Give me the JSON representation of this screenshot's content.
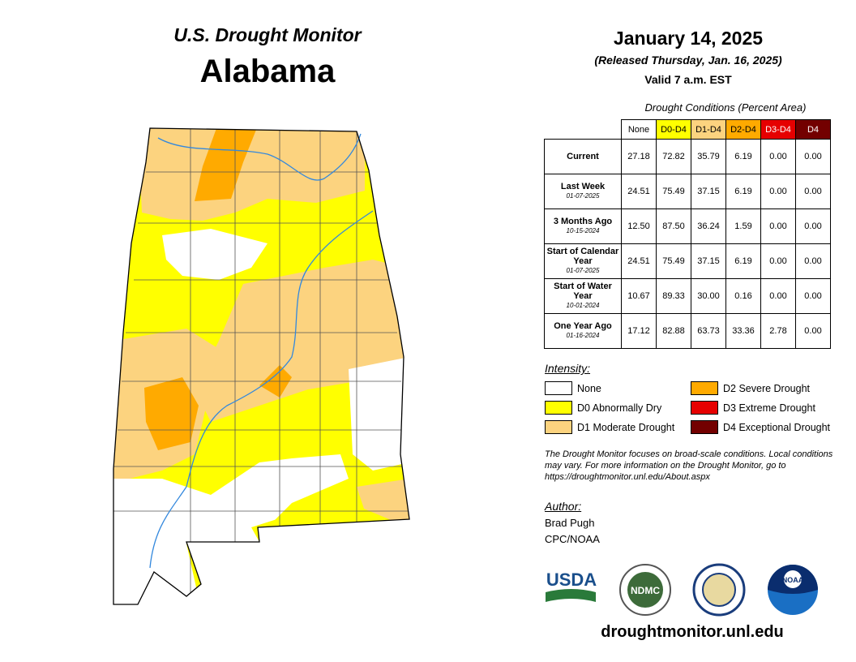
{
  "header": {
    "title": "U.S. Drought Monitor",
    "state": "Alabama",
    "date": "January 14, 2025",
    "released": "(Released Thursday, Jan. 16, 2025)",
    "valid": "Valid 7 a.m. EST"
  },
  "table": {
    "caption": "Drought Conditions (Percent Area)",
    "columns": [
      {
        "label": "None",
        "color": "#ffffff",
        "text_color": "#000000"
      },
      {
        "label": "D0-D4",
        "color": "#ffff00",
        "text_color": "#000000"
      },
      {
        "label": "D1-D4",
        "color": "#fcd37f",
        "text_color": "#000000"
      },
      {
        "label": "D2-D4",
        "color": "#ffaa00",
        "text_color": "#000000"
      },
      {
        "label": "D3-D4",
        "color": "#e60000",
        "text_color": "#ffffff"
      },
      {
        "label": "D4",
        "color": "#730000",
        "text_color": "#ffffff"
      }
    ],
    "rows": [
      {
        "label": "Current",
        "values": [
          "27.18",
          "72.82",
          "35.79",
          "6.19",
          "0.00",
          "0.00"
        ]
      },
      {
        "label": "Last Week",
        "date": "01-07-2025",
        "values": [
          "24.51",
          "75.49",
          "37.15",
          "6.19",
          "0.00",
          "0.00"
        ]
      },
      {
        "label": "3 Months Ago",
        "date": "10-15-2024",
        "values": [
          "12.50",
          "87.50",
          "36.24",
          "1.59",
          "0.00",
          "0.00"
        ]
      },
      {
        "label": "Start of Calendar Year",
        "date": "01-07-2025",
        "values": [
          "24.51",
          "75.49",
          "37.15",
          "6.19",
          "0.00",
          "0.00"
        ]
      },
      {
        "label": "Start of Water Year",
        "date": "10-01-2024",
        "values": [
          "10.67",
          "89.33",
          "30.00",
          "0.16",
          "0.00",
          "0.00"
        ]
      },
      {
        "label": "One Year Ago",
        "date": "01-16-2024",
        "values": [
          "17.12",
          "82.88",
          "63.73",
          "33.36",
          "2.78",
          "0.00"
        ]
      }
    ]
  },
  "legend": {
    "title": "Intensity:",
    "items": [
      {
        "label": "None",
        "color": "#ffffff"
      },
      {
        "label": "D0 Abnormally Dry",
        "color": "#ffff00"
      },
      {
        "label": "D1 Moderate Drought",
        "color": "#fcd37f"
      },
      {
        "label": "D2 Severe Drought",
        "color": "#ffaa00"
      },
      {
        "label": "D3 Extreme Drought",
        "color": "#e60000"
      },
      {
        "label": "D4 Exceptional Drought",
        "color": "#730000"
      }
    ]
  },
  "note": "The Drought Monitor focuses on broad-scale conditions. Local conditions may vary. For more information on the Drought Monitor, go to https://droughtmonitor.unl.edu/About.aspx",
  "author": {
    "title": "Author:",
    "name": "Brad Pugh",
    "org": "CPC/NOAA"
  },
  "logos": [
    "USDA",
    "NDMC",
    "NOAA"
  ],
  "url": "droughtmonitor.unl.edu"
}
